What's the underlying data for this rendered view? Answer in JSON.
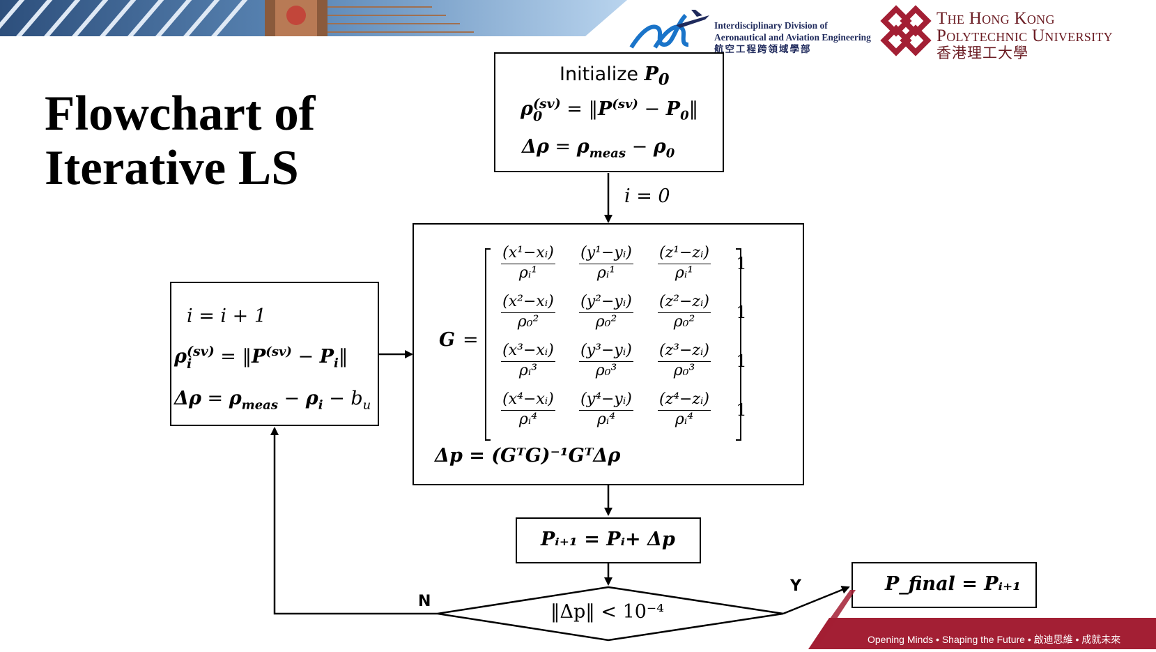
{
  "header": {
    "division_en": [
      "Interdisciplinary Division of",
      "Aeronautical and Aviation Engineering"
    ],
    "division_zh": "航空工程跨領域學部",
    "university_en": [
      "The Hong Kong",
      "Polytechnic University"
    ],
    "university_zh": "香港理工大學"
  },
  "slide": {
    "title": [
      "Flowchart of",
      "Iterative LS"
    ]
  },
  "flowchart": {
    "init": {
      "label": "Initialize",
      "var": "P",
      "sub": "0",
      "rho_var": "ρ",
      "rho_sup": "(sv)",
      "rho_sub": "0",
      "eq": "=",
      "norm_open": "‖",
      "P_var": "P",
      "P_sup": "(sv)",
      "minus": "−",
      "P0_var": "P",
      "P0_sub": "0",
      "norm_close": "‖",
      "delta_rho": "Δρ",
      "meas_rho": "ρ",
      "meas_sub": "meas",
      "rho0": "ρ",
      "rho0_sub": "0"
    },
    "init_edge_label": "i = 0",
    "update_box": {
      "line1": "i = i + 1",
      "rho_sub": "i",
      "rho_sup": "(sv)",
      "Pi_sub": "i",
      "bu": "b",
      "bu_sub": "u",
      "meas_sub": "meas"
    },
    "matrix_box": {
      "G": "G",
      "eq": "=",
      "rows": [
        {
          "x": "(x¹−xᵢ)",
          "y": "(y¹−yᵢ)",
          "z": "(z¹−zᵢ)",
          "dx": "ρᵢ¹",
          "dy": "ρᵢ¹",
          "dz": "ρᵢ¹",
          "one": "1"
        },
        {
          "x": "(x²−xᵢ)",
          "y": "(y²−yᵢ)",
          "z": "(z²−zᵢ)",
          "dx": "ρ₀²",
          "dy": "ρ₀²",
          "dz": "ρ₀²",
          "one": "1"
        },
        {
          "x": "(x³−xᵢ)",
          "y": "(y³−yᵢ)",
          "z": "(z³−zᵢ)",
          "dx": "ρᵢ³",
          "dy": "ρ₀³",
          "dz": "ρ₀³",
          "one": "1"
        },
        {
          "x": "(x⁴−xᵢ)",
          "y": "(y⁴−yᵢ)",
          "z": "(z⁴−zᵢ)",
          "dx": "ρᵢ⁴",
          "dy": "ρᵢ⁴",
          "dz": "ρᵢ⁴",
          "one": "1"
        }
      ],
      "dp_eq": "Δp = (GᵀG)⁻¹GᵀΔρ"
    },
    "position_update": "Pᵢ₊₁ = Pᵢ+ Δp",
    "decision": "‖Δp‖ < 10⁻⁴",
    "yes_label": "Y",
    "no_label": "N",
    "final": "P_final = Pᵢ₊₁"
  },
  "footer": {
    "tagline": "Opening Minds • Shaping the Future • 啟迪思維 • 成就未來"
  },
  "colors": {
    "polyu_red": "#a31f34",
    "division_blue": "#1a74c9",
    "footer_red": "#a31f34"
  }
}
